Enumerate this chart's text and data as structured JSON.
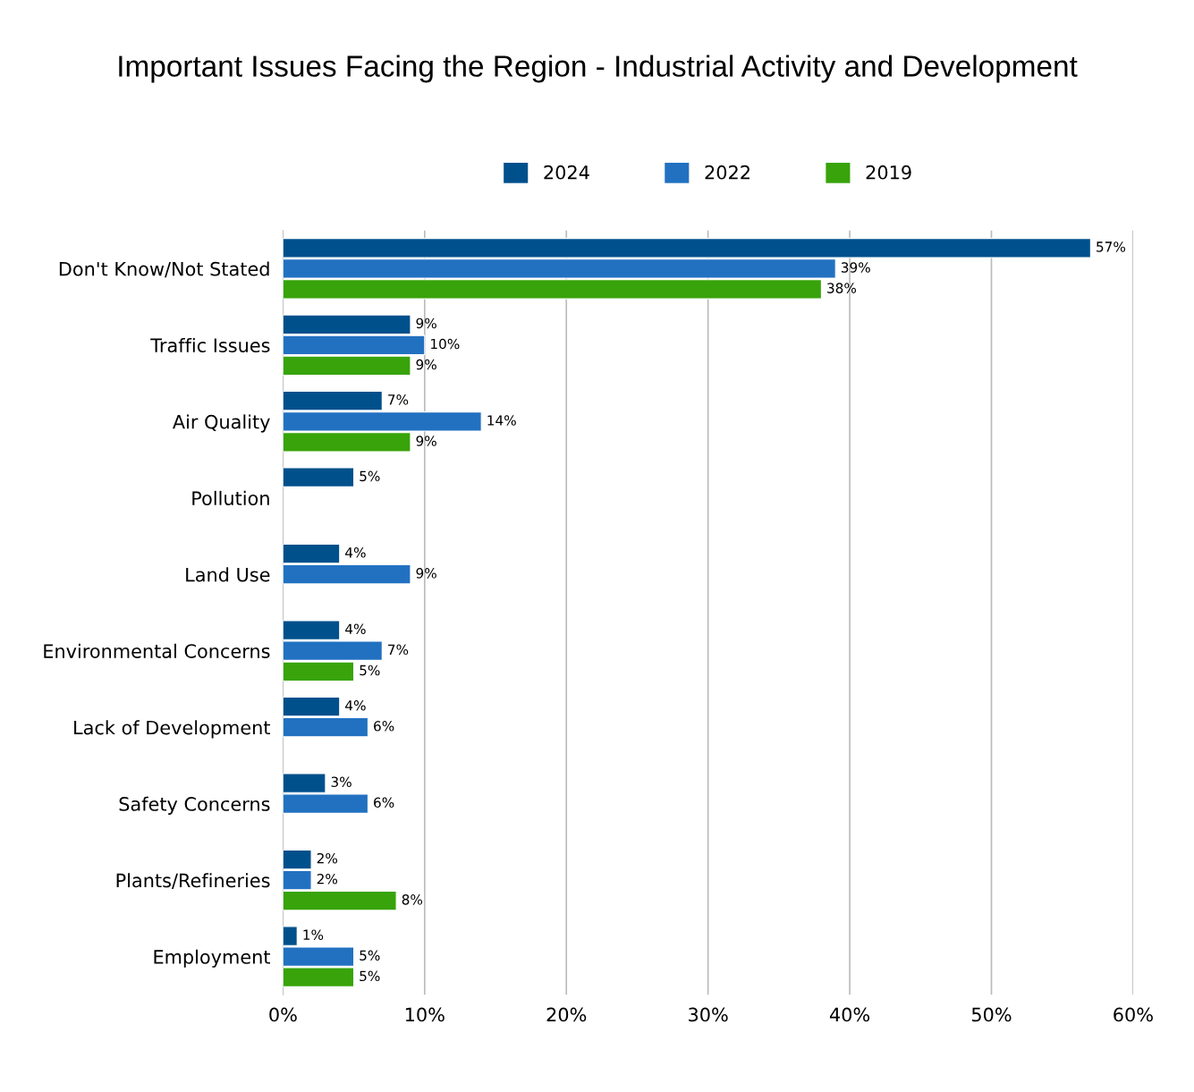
{
  "chart_data": {
    "type": "bar",
    "orientation": "horizontal",
    "title": "Important Issues Facing the Region - Industrial Activity and Development",
    "categories": [
      "Don't Know/Not Stated",
      "Traffic Issues",
      "Air Quality",
      "Pollution",
      "Land Use",
      "Environmental Concerns",
      "Lack of Development",
      "Safety Concerns",
      "Plants/Refineries",
      "Employment"
    ],
    "series": [
      {
        "name": "2024",
        "color": "#00508c",
        "values": [
          57,
          9,
          7,
          5,
          4,
          4,
          4,
          3,
          2,
          1
        ],
        "value_labels": [
          "57%",
          "9%",
          "7%",
          "5%",
          "4%",
          "4%",
          "4%",
          "3%",
          "2%",
          "1%"
        ]
      },
      {
        "name": "2022",
        "color": "#2271c1",
        "values": [
          39,
          10,
          14,
          null,
          9,
          7,
          6,
          6,
          2,
          5
        ],
        "value_labels": [
          "39%",
          "10%",
          "14%",
          null,
          "9%",
          "7%",
          "6%",
          "6%",
          "2%",
          "5%"
        ]
      },
      {
        "name": "2019",
        "color": "#38a30a",
        "values": [
          38,
          9,
          9,
          null,
          null,
          5,
          null,
          null,
          8,
          5
        ],
        "value_labels": [
          "38%",
          "9%",
          "9%",
          null,
          null,
          "5%",
          null,
          null,
          "8%",
          "5%"
        ]
      }
    ],
    "xlim": [
      0,
      60
    ],
    "xticks": [
      {
        "value": 0,
        "label": "0%"
      },
      {
        "value": 10,
        "label": "10%"
      },
      {
        "value": 20,
        "label": "20%"
      },
      {
        "value": 30,
        "label": "30%"
      },
      {
        "value": 40,
        "label": "40%"
      },
      {
        "value": 50,
        "label": "50%"
      },
      {
        "value": 60,
        "label": "60%"
      }
    ],
    "grid": "x",
    "legend": "top"
  }
}
